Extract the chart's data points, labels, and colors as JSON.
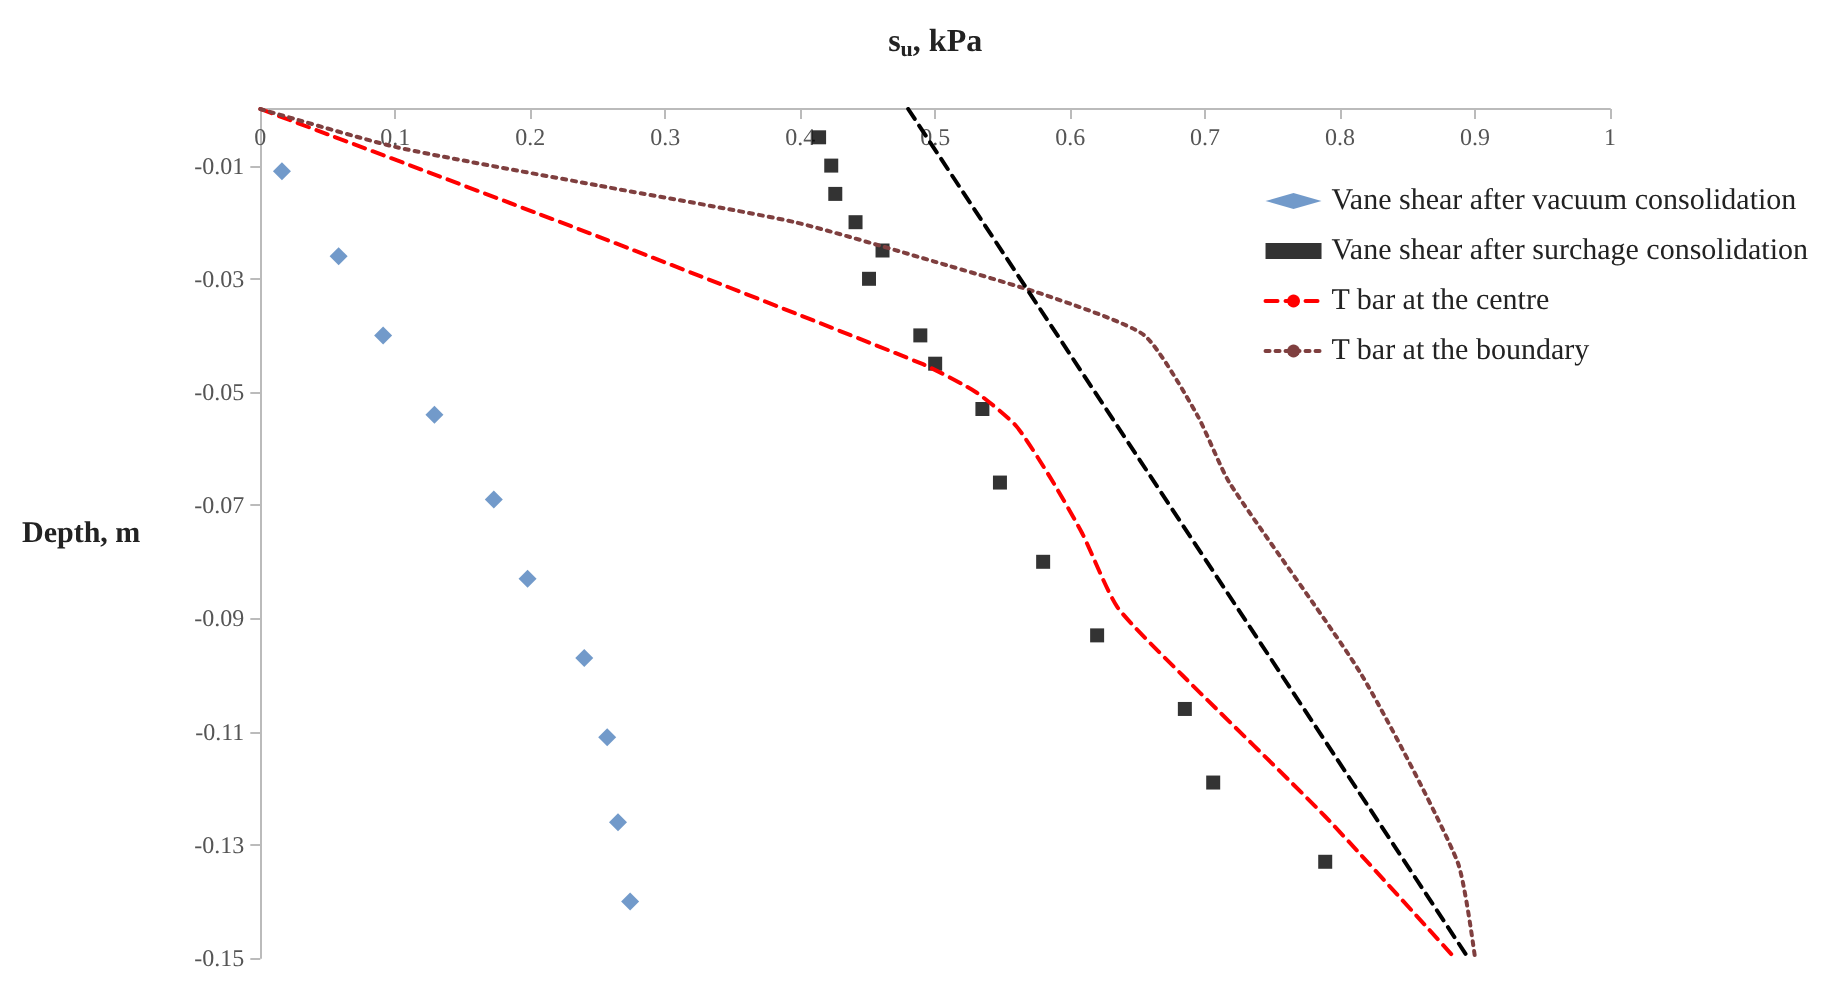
{
  "chart_data": {
    "type": "scatter",
    "xlabel": "s$_{u}$, kPa",
    "ylabel": "Depth, m",
    "xlim": [
      0,
      1
    ],
    "xticks": [
      0,
      0.1,
      0.2,
      0.3,
      0.4,
      0.5,
      0.6,
      0.7,
      0.8,
      0.9,
      1
    ],
    "ylim": [
      -0.15,
      0
    ],
    "yticks": [
      -0.01,
      -0.03,
      -0.05,
      -0.07,
      -0.09,
      -0.11,
      -0.13,
      -0.15
    ],
    "grid": false,
    "legend": "right",
    "series": [
      {
        "name": "Vane shear after vacuum consolidation",
        "marker": "diamond",
        "color": "#4f81bd",
        "x": [
          0.016,
          0.058,
          0.091,
          0.129,
          0.173,
          0.198,
          0.24,
          0.257,
          0.265,
          0.274
        ],
        "values": [
          -0.011,
          -0.026,
          -0.04,
          -0.054,
          -0.069,
          -0.083,
          -0.097,
          -0.111,
          -0.126,
          -0.14
        ]
      },
      {
        "name": "Vane shear after surchage consolidation",
        "marker": "square",
        "color": "#000000",
        "x": [
          0.414,
          0.423,
          0.426,
          0.441,
          0.461,
          0.451,
          0.489,
          0.5,
          0.535,
          0.548,
          0.58,
          0.62,
          0.685,
          0.706,
          0.789
        ],
        "values": [
          -0.005,
          -0.01,
          -0.015,
          -0.02,
          -0.025,
          -0.03,
          -0.04,
          -0.045,
          -0.053,
          -0.066,
          -0.08,
          -0.093,
          -0.106,
          -0.119,
          -0.133
        ]
      },
      {
        "name": "T bar at the centre",
        "type": "line",
        "marker": "none",
        "line_style": "dashed",
        "color": "#ff0000",
        "x": [
          0,
          0.25,
          0.49,
          0.53,
          0.56,
          0.585,
          0.609,
          0.635,
          0.683,
          0.789,
          0.885
        ],
        "values": [
          0,
          -0.0225,
          -0.045,
          -0.05,
          -0.056,
          -0.065,
          -0.075,
          -0.088,
          -0.1,
          -0.125,
          -0.15
        ]
      },
      {
        "name": "T bar at the boundary",
        "type": "line",
        "marker": "none",
        "line_style": "dotted",
        "color": "#7f3f3f",
        "x": [
          0,
          0.1,
          0.25,
          0.396,
          0.5,
          0.583,
          0.655,
          0.694,
          0.718,
          0.816,
          0.887,
          0.9
        ],
        "values": [
          0,
          -0.0067,
          -0.0135,
          -0.02,
          -0.027,
          -0.033,
          -0.04,
          -0.054,
          -0.066,
          -0.1,
          -0.133,
          -0.15
        ]
      },
      {
        "type": "line",
        "marker": "none",
        "line_style": "dashed",
        "color": "#000000",
        "x": [
          0.48,
          0.895
        ],
        "values": [
          0,
          -0.15
        ]
      }
    ]
  }
}
